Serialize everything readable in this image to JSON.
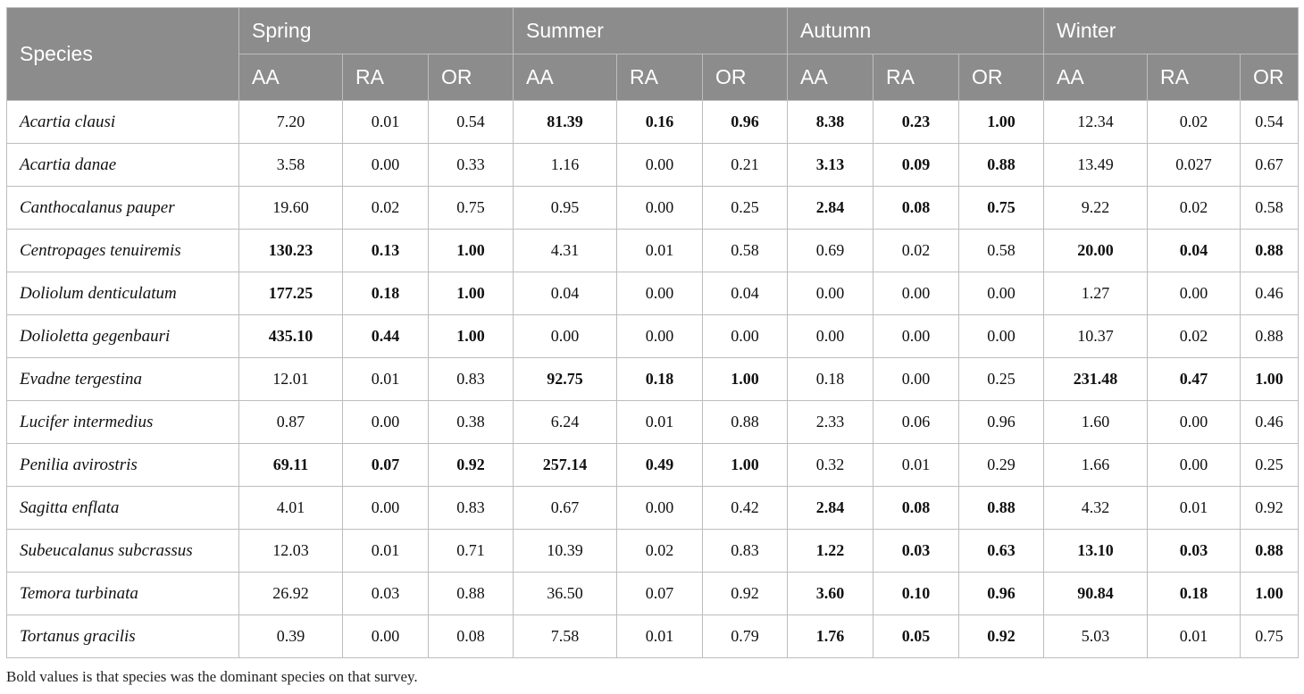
{
  "table": {
    "species_header": "Species",
    "seasons": [
      "Spring",
      "Summer",
      "Autumn",
      "Winter"
    ],
    "metrics": [
      "AA",
      "RA",
      "OR"
    ],
    "rows": [
      {
        "species": "Acartia clausi",
        "values": [
          "7.20",
          "0.01",
          "0.54",
          "81.39",
          "0.16",
          "0.96",
          "8.38",
          "0.23",
          "1.00",
          "12.34",
          "0.02",
          "0.54"
        ],
        "bold": [
          false,
          false,
          false,
          true,
          true,
          true,
          true,
          true,
          true,
          false,
          false,
          false
        ]
      },
      {
        "species": "Acartia danae",
        "values": [
          "3.58",
          "0.00",
          "0.33",
          "1.16",
          "0.00",
          "0.21",
          "3.13",
          "0.09",
          "0.88",
          "13.49",
          "0.027",
          "0.67"
        ],
        "bold": [
          false,
          false,
          false,
          false,
          false,
          false,
          true,
          true,
          true,
          false,
          false,
          false
        ]
      },
      {
        "species": "Canthocalanus pauper",
        "values": [
          "19.60",
          "0.02",
          "0.75",
          "0.95",
          "0.00",
          "0.25",
          "2.84",
          "0.08",
          "0.75",
          "9.22",
          "0.02",
          "0.58"
        ],
        "bold": [
          false,
          false,
          false,
          false,
          false,
          false,
          true,
          true,
          true,
          false,
          false,
          false
        ]
      },
      {
        "species": "Centropages tenuiremis",
        "values": [
          "130.23",
          "0.13",
          "1.00",
          "4.31",
          "0.01",
          "0.58",
          "0.69",
          "0.02",
          "0.58",
          "20.00",
          "0.04",
          "0.88"
        ],
        "bold": [
          true,
          true,
          true,
          false,
          false,
          false,
          false,
          false,
          false,
          true,
          true,
          true
        ]
      },
      {
        "species": "Doliolum denticulatum",
        "values": [
          "177.25",
          "0.18",
          "1.00",
          "0.04",
          "0.00",
          "0.04",
          "0.00",
          "0.00",
          "0.00",
          "1.27",
          "0.00",
          "0.46"
        ],
        "bold": [
          true,
          true,
          true,
          false,
          false,
          false,
          false,
          false,
          false,
          false,
          false,
          false
        ]
      },
      {
        "species": "Dolioletta gegenbauri",
        "values": [
          "435.10",
          "0.44",
          "1.00",
          "0.00",
          "0.00",
          "0.00",
          "0.00",
          "0.00",
          "0.00",
          "10.37",
          "0.02",
          "0.88"
        ],
        "bold": [
          true,
          true,
          true,
          false,
          false,
          false,
          false,
          false,
          false,
          false,
          false,
          false
        ]
      },
      {
        "species": "Evadne tergestina",
        "values": [
          "12.01",
          "0.01",
          "0.83",
          "92.75",
          "0.18",
          "1.00",
          "0.18",
          "0.00",
          "0.25",
          "231.48",
          "0.47",
          "1.00"
        ],
        "bold": [
          false,
          false,
          false,
          true,
          true,
          true,
          false,
          false,
          false,
          true,
          true,
          true
        ]
      },
      {
        "species": "Lucifer intermedius",
        "values": [
          "0.87",
          "0.00",
          "0.38",
          "6.24",
          "0.01",
          "0.88",
          "2.33",
          "0.06",
          "0.96",
          "1.60",
          "0.00",
          "0.46"
        ],
        "bold": [
          false,
          false,
          false,
          false,
          false,
          false,
          false,
          false,
          false,
          false,
          false,
          false
        ]
      },
      {
        "species": "Penilia avirostris",
        "values": [
          "69.11",
          "0.07",
          "0.92",
          "257.14",
          "0.49",
          "1.00",
          "0.32",
          "0.01",
          "0.29",
          "1.66",
          "0.00",
          "0.25"
        ],
        "bold": [
          true,
          true,
          true,
          true,
          true,
          true,
          false,
          false,
          false,
          false,
          false,
          false
        ]
      },
      {
        "species": "Sagitta enflata",
        "values": [
          "4.01",
          "0.00",
          "0.83",
          "0.67",
          "0.00",
          "0.42",
          "2.84",
          "0.08",
          "0.88",
          "4.32",
          "0.01",
          "0.92"
        ],
        "bold": [
          false,
          false,
          false,
          false,
          false,
          false,
          true,
          true,
          true,
          false,
          false,
          false
        ]
      },
      {
        "species": "Subeucalanus subcrassus",
        "values": [
          "12.03",
          "0.01",
          "0.71",
          "10.39",
          "0.02",
          "0.83",
          "1.22",
          "0.03",
          "0.63",
          "13.10",
          "0.03",
          "0.88"
        ],
        "bold": [
          false,
          false,
          false,
          false,
          false,
          false,
          true,
          true,
          true,
          true,
          true,
          true
        ]
      },
      {
        "species": "Temora turbinata",
        "values": [
          "26.92",
          "0.03",
          "0.88",
          "36.50",
          "0.07",
          "0.92",
          "3.60",
          "0.10",
          "0.96",
          "90.84",
          "0.18",
          "1.00"
        ],
        "bold": [
          false,
          false,
          false,
          false,
          false,
          false,
          true,
          true,
          true,
          true,
          true,
          true
        ]
      },
      {
        "species": "Tortanus gracilis",
        "values": [
          "0.39",
          "0.00",
          "0.08",
          "7.58",
          "0.01",
          "0.79",
          "1.76",
          "0.05",
          "0.92",
          "5.03",
          "0.01",
          "0.75"
        ],
        "bold": [
          false,
          false,
          false,
          false,
          false,
          false,
          true,
          true,
          true,
          false,
          false,
          false
        ]
      }
    ]
  },
  "footnote": "Bold values is that species was the dominant species on that survey."
}
